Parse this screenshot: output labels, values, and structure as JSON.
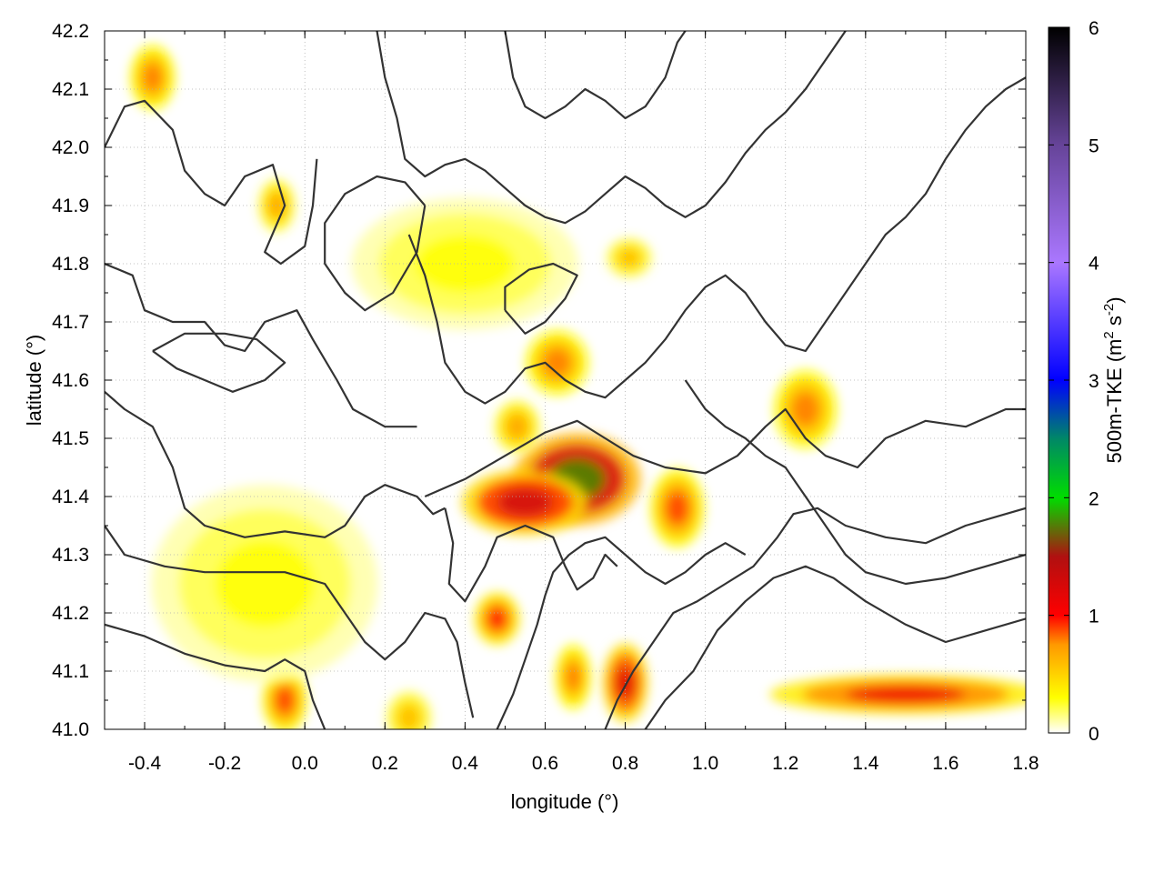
{
  "chart_data": {
    "type": "heatmap",
    "title": "",
    "xlabel": "longitude (°)",
    "ylabel": "latitude (°)",
    "xlim": [
      -0.5,
      1.8
    ],
    "ylim": [
      41.0,
      42.2
    ],
    "x_ticks": [
      -0.4,
      -0.2,
      0.0,
      0.2,
      0.4,
      0.6,
      0.8,
      1.0,
      1.2,
      1.4,
      1.6,
      1.8
    ],
    "x_tick_labels": [
      "-0.4",
      "-0.2",
      "0.0",
      "0.2",
      "0.4",
      "0.6",
      "0.8",
      "1.0",
      "1.2",
      "1.4",
      "1.6",
      "1.8"
    ],
    "y_ticks": [
      41.0,
      41.1,
      41.2,
      41.3,
      41.4,
      41.5,
      41.6,
      41.7,
      41.8,
      41.9,
      42.0,
      42.1,
      42.2
    ],
    "y_tick_labels": [
      "41.0",
      "41.1",
      "41.2",
      "41.3",
      "41.4",
      "41.5",
      "41.6",
      "41.7",
      "41.8",
      "41.9",
      "42.0",
      "42.1",
      "42.2"
    ],
    "grid": true,
    "colorbar": {
      "label": "500m-TKE (m² s⁻²)",
      "label_main": "500m-TKE (m",
      "label_sup1": "2",
      "label_mid": " s",
      "label_sup2": "-2",
      "label_end": ")",
      "range": [
        0,
        6
      ],
      "ticks": [
        0,
        1,
        2,
        3,
        4,
        5,
        6
      ],
      "tick_labels": [
        "0",
        "1",
        "2",
        "3",
        "4",
        "5",
        "6"
      ],
      "stops": [
        {
          "v": 0.0,
          "color": "#ffffff"
        },
        {
          "v": 0.3,
          "color": "#ffff00"
        },
        {
          "v": 0.75,
          "color": "#ff9900"
        },
        {
          "v": 1.0,
          "color": "#ff0000"
        },
        {
          "v": 1.5,
          "color": "#b01010"
        },
        {
          "v": 2.0,
          "color": "#00dd00"
        },
        {
          "v": 2.5,
          "color": "#008866"
        },
        {
          "v": 3.0,
          "color": "#0000ff"
        },
        {
          "v": 4.0,
          "color": "#aa77ff"
        },
        {
          "v": 5.0,
          "color": "#664499"
        },
        {
          "v": 6.0,
          "color": "#000000"
        }
      ]
    },
    "tke_features": [
      {
        "lon": 0.68,
        "lat": 41.43,
        "tke": 1.8,
        "rlon": 0.14,
        "rlat": 0.07
      },
      {
        "lon": 0.55,
        "lat": 41.39,
        "tke": 1.3,
        "rlon": 0.14,
        "rlat": 0.05
      },
      {
        "lon": 0.93,
        "lat": 41.38,
        "tke": 0.9,
        "rlon": 0.06,
        "rlat": 0.06
      },
      {
        "lon": 0.63,
        "lat": 41.63,
        "tke": 0.8,
        "rlon": 0.07,
        "rlat": 0.05
      },
      {
        "lon": 0.53,
        "lat": 41.52,
        "tke": 0.7,
        "rlon": 0.05,
        "rlat": 0.04
      },
      {
        "lon": 0.48,
        "lat": 41.19,
        "tke": 1.0,
        "rlon": 0.05,
        "rlat": 0.04
      },
      {
        "lon": 0.8,
        "lat": 41.08,
        "tke": 1.2,
        "rlon": 0.05,
        "rlat": 0.06
      },
      {
        "lon": 0.67,
        "lat": 41.09,
        "tke": 0.8,
        "rlon": 0.04,
        "rlat": 0.05
      },
      {
        "lon": 1.25,
        "lat": 41.55,
        "tke": 0.8,
        "rlon": 0.07,
        "rlat": 0.06
      },
      {
        "lon": -0.38,
        "lat": 42.12,
        "tke": 0.8,
        "rlon": 0.05,
        "rlat": 0.05
      },
      {
        "lon": -0.07,
        "lat": 41.9,
        "tke": 0.7,
        "rlon": 0.04,
        "rlat": 0.04
      },
      {
        "lon": -0.05,
        "lat": 41.05,
        "tke": 0.9,
        "rlon": 0.05,
        "rlat": 0.05
      },
      {
        "lon": 0.26,
        "lat": 41.02,
        "tke": 0.6,
        "rlon": 0.05,
        "rlat": 0.04
      },
      {
        "lon": 0.81,
        "lat": 41.81,
        "tke": 0.6,
        "rlon": 0.05,
        "rlat": 0.03
      },
      {
        "lon": 0.4,
        "lat": 41.8,
        "tke": 0.3,
        "rlon": 0.25,
        "rlat": 0.1
      },
      {
        "lon": -0.1,
        "lat": 41.25,
        "tke": 0.3,
        "rlon": 0.25,
        "rlat": 0.15
      },
      {
        "lon": 1.5,
        "lat": 41.06,
        "tke": 1.1,
        "rlon": 0.3,
        "rlat": 0.03
      }
    ],
    "contours": [
      [
        [
          -0.5,
          42.0
        ],
        [
          -0.45,
          42.07
        ],
        [
          -0.4,
          42.08
        ],
        [
          -0.33,
          42.03
        ],
        [
          -0.3,
          41.96
        ],
        [
          -0.25,
          41.92
        ],
        [
          -0.2,
          41.9
        ],
        [
          -0.15,
          41.95
        ],
        [
          -0.08,
          41.97
        ],
        [
          -0.05,
          41.9
        ],
        [
          -0.1,
          41.82
        ],
        [
          -0.06,
          41.8
        ],
        [
          0.0,
          41.83
        ],
        [
          0.02,
          41.9
        ],
        [
          0.03,
          41.98
        ]
      ],
      [
        [
          -0.5,
          41.8
        ],
        [
          -0.43,
          41.78
        ],
        [
          -0.4,
          41.72
        ],
        [
          -0.33,
          41.7
        ],
        [
          -0.25,
          41.7
        ],
        [
          -0.2,
          41.66
        ],
        [
          -0.15,
          41.65
        ],
        [
          -0.1,
          41.7
        ],
        [
          -0.02,
          41.72
        ],
        [
          0.02,
          41.67
        ],
        [
          0.08,
          41.6
        ],
        [
          0.12,
          41.55
        ],
        [
          0.2,
          41.52
        ],
        [
          0.28,
          41.52
        ]
      ],
      [
        [
          -0.5,
          41.58
        ],
        [
          -0.45,
          41.55
        ],
        [
          -0.38,
          41.52
        ],
        [
          -0.33,
          41.45
        ],
        [
          -0.3,
          41.38
        ],
        [
          -0.25,
          41.35
        ],
        [
          -0.15,
          41.33
        ],
        [
          -0.05,
          41.34
        ],
        [
          0.05,
          41.33
        ],
        [
          0.1,
          41.35
        ],
        [
          0.15,
          41.4
        ],
        [
          0.2,
          41.42
        ],
        [
          0.28,
          41.4
        ],
        [
          0.32,
          41.37
        ],
        [
          0.35,
          41.38
        ]
      ],
      [
        [
          0.35,
          41.38
        ],
        [
          0.37,
          41.32
        ],
        [
          0.36,
          41.25
        ],
        [
          0.4,
          41.22
        ],
        [
          0.45,
          41.28
        ],
        [
          0.48,
          41.33
        ],
        [
          0.55,
          41.35
        ],
        [
          0.62,
          41.33
        ],
        [
          0.65,
          41.28
        ],
        [
          0.68,
          41.24
        ],
        [
          0.72,
          41.26
        ],
        [
          0.75,
          41.3
        ],
        [
          0.78,
          41.28
        ]
      ],
      [
        [
          -0.5,
          41.35
        ],
        [
          -0.45,
          41.3
        ],
        [
          -0.35,
          41.28
        ],
        [
          -0.25,
          41.27
        ],
        [
          -0.15,
          41.27
        ],
        [
          -0.05,
          41.27
        ],
        [
          0.05,
          41.25
        ],
        [
          0.1,
          41.2
        ],
        [
          0.15,
          41.15
        ],
        [
          0.2,
          41.12
        ],
        [
          0.25,
          41.15
        ],
        [
          0.3,
          41.2
        ],
        [
          0.35,
          41.19
        ],
        [
          0.38,
          41.15
        ],
        [
          0.4,
          41.08
        ],
        [
          0.42,
          41.02
        ]
      ],
      [
        [
          -0.5,
          41.18
        ],
        [
          -0.4,
          41.16
        ],
        [
          -0.3,
          41.13
        ],
        [
          -0.2,
          41.11
        ],
        [
          -0.1,
          41.1
        ],
        [
          -0.05,
          41.12
        ],
        [
          0.0,
          41.1
        ],
        [
          0.02,
          41.05
        ],
        [
          0.05,
          41.0
        ]
      ],
      [
        [
          0.48,
          41.0
        ],
        [
          0.52,
          41.06
        ],
        [
          0.55,
          41.12
        ],
        [
          0.58,
          41.18
        ],
        [
          0.6,
          41.23
        ],
        [
          0.62,
          41.27
        ],
        [
          0.66,
          41.3
        ],
        [
          0.7,
          41.32
        ],
        [
          0.75,
          41.33
        ],
        [
          0.8,
          41.3
        ],
        [
          0.85,
          41.27
        ],
        [
          0.9,
          41.25
        ],
        [
          0.95,
          41.27
        ],
        [
          1.0,
          41.3
        ],
        [
          1.05,
          41.32
        ],
        [
          1.1,
          41.3
        ]
      ],
      [
        [
          0.75,
          41.0
        ],
        [
          0.78,
          41.05
        ],
        [
          0.82,
          41.1
        ],
        [
          0.87,
          41.15
        ],
        [
          0.92,
          41.2
        ],
        [
          0.98,
          41.22
        ],
        [
          1.05,
          41.25
        ],
        [
          1.12,
          41.28
        ],
        [
          1.18,
          41.33
        ],
        [
          1.22,
          41.37
        ],
        [
          1.28,
          41.38
        ],
        [
          1.35,
          41.35
        ],
        [
          1.45,
          41.33
        ],
        [
          1.55,
          41.32
        ],
        [
          1.65,
          41.35
        ],
        [
          1.75,
          41.37
        ],
        [
          1.8,
          41.38
        ]
      ],
      [
        [
          0.85,
          41.0
        ],
        [
          0.9,
          41.05
        ],
        [
          0.97,
          41.1
        ],
        [
          1.03,
          41.17
        ],
        [
          1.1,
          41.22
        ],
        [
          1.17,
          41.26
        ],
        [
          1.25,
          41.28
        ],
        [
          1.32,
          41.26
        ],
        [
          1.4,
          41.22
        ],
        [
          1.5,
          41.18
        ],
        [
          1.6,
          41.15
        ],
        [
          1.7,
          41.17
        ],
        [
          1.8,
          41.19
        ]
      ],
      [
        [
          0.3,
          41.4
        ],
        [
          0.4,
          41.43
        ],
        [
          0.5,
          41.47
        ],
        [
          0.6,
          41.51
        ],
        [
          0.68,
          41.53
        ],
        [
          0.75,
          41.5
        ],
        [
          0.82,
          41.47
        ],
        [
          0.9,
          41.45
        ],
        [
          1.0,
          41.44
        ],
        [
          1.08,
          41.47
        ],
        [
          1.15,
          41.52
        ],
        [
          1.2,
          41.55
        ],
        [
          1.25,
          41.5
        ],
        [
          1.3,
          41.47
        ],
        [
          1.38,
          41.45
        ],
        [
          1.45,
          41.5
        ],
        [
          1.55,
          41.53
        ],
        [
          1.65,
          41.52
        ],
        [
          1.75,
          41.55
        ],
        [
          1.8,
          41.55
        ]
      ],
      [
        [
          0.26,
          41.85
        ],
        [
          0.3,
          41.78
        ],
        [
          0.33,
          41.7
        ],
        [
          0.35,
          41.63
        ],
        [
          0.4,
          41.58
        ],
        [
          0.45,
          41.56
        ],
        [
          0.5,
          41.58
        ],
        [
          0.55,
          41.62
        ],
        [
          0.6,
          41.63
        ],
        [
          0.65,
          41.6
        ],
        [
          0.7,
          41.58
        ],
        [
          0.75,
          41.57
        ],
        [
          0.8,
          41.6
        ],
        [
          0.85,
          41.63
        ],
        [
          0.9,
          41.67
        ],
        [
          0.95,
          41.72
        ],
        [
          1.0,
          41.76
        ],
        [
          1.05,
          41.78
        ],
        [
          1.1,
          41.75
        ],
        [
          1.15,
          41.7
        ],
        [
          1.2,
          41.66
        ],
        [
          1.25,
          41.65
        ],
        [
          1.3,
          41.7
        ],
        [
          1.35,
          41.75
        ],
        [
          1.4,
          41.8
        ],
        [
          1.45,
          41.85
        ],
        [
          1.5,
          41.88
        ],
        [
          1.55,
          41.92
        ],
        [
          1.6,
          41.98
        ],
        [
          1.65,
          42.03
        ],
        [
          1.7,
          42.07
        ],
        [
          1.75,
          42.1
        ],
        [
          1.8,
          42.12
        ]
      ],
      [
        [
          0.18,
          42.2
        ],
        [
          0.2,
          42.12
        ],
        [
          0.23,
          42.05
        ],
        [
          0.25,
          41.98
        ],
        [
          0.3,
          41.95
        ],
        [
          0.35,
          41.97
        ],
        [
          0.4,
          41.98
        ],
        [
          0.45,
          41.96
        ],
        [
          0.5,
          41.93
        ],
        [
          0.55,
          41.9
        ],
        [
          0.6,
          41.88
        ],
        [
          0.65,
          41.87
        ],
        [
          0.7,
          41.89
        ],
        [
          0.75,
          41.92
        ],
        [
          0.8,
          41.95
        ],
        [
          0.85,
          41.93
        ],
        [
          0.9,
          41.9
        ],
        [
          0.95,
          41.88
        ],
        [
          1.0,
          41.9
        ],
        [
          1.05,
          41.94
        ],
        [
          1.1,
          41.99
        ],
        [
          1.15,
          42.03
        ],
        [
          1.2,
          42.06
        ],
        [
          1.25,
          42.1
        ],
        [
          1.3,
          42.15
        ],
        [
          1.35,
          42.2
        ]
      ],
      [
        [
          0.5,
          42.2
        ],
        [
          0.52,
          42.12
        ],
        [
          0.55,
          42.07
        ],
        [
          0.6,
          42.05
        ],
        [
          0.65,
          42.07
        ],
        [
          0.7,
          42.1
        ],
        [
          0.75,
          42.08
        ],
        [
          0.8,
          42.05
        ],
        [
          0.85,
          42.07
        ],
        [
          0.9,
          42.12
        ],
        [
          0.93,
          42.18
        ],
        [
          0.95,
          42.2
        ]
      ],
      [
        [
          0.95,
          41.6
        ],
        [
          1.0,
          41.55
        ],
        [
          1.05,
          41.52
        ],
        [
          1.1,
          41.5
        ],
        [
          1.15,
          41.47
        ],
        [
          1.2,
          41.45
        ],
        [
          1.25,
          41.4
        ],
        [
          1.3,
          41.35
        ],
        [
          1.35,
          41.3
        ],
        [
          1.4,
          41.27
        ],
        [
          1.5,
          41.25
        ],
        [
          1.6,
          41.26
        ],
        [
          1.7,
          41.28
        ],
        [
          1.8,
          41.3
        ]
      ],
      [
        [
          0.3,
          41.9
        ],
        [
          0.28,
          41.82
        ],
        [
          0.22,
          41.75
        ],
        [
          0.15,
          41.72
        ],
        [
          0.1,
          41.75
        ],
        [
          0.05,
          41.8
        ],
        [
          0.05,
          41.87
        ],
        [
          0.1,
          41.92
        ],
        [
          0.18,
          41.95
        ],
        [
          0.25,
          41.94
        ],
        [
          0.3,
          41.9
        ]
      ],
      [
        [
          -0.38,
          41.65
        ],
        [
          -0.32,
          41.62
        ],
        [
          -0.25,
          41.6
        ],
        [
          -0.18,
          41.58
        ],
        [
          -0.1,
          41.6
        ],
        [
          -0.05,
          41.63
        ],
        [
          -0.12,
          41.67
        ],
        [
          -0.2,
          41.68
        ],
        [
          -0.3,
          41.68
        ],
        [
          -0.38,
          41.65
        ]
      ],
      [
        [
          0.5,
          41.72
        ],
        [
          0.55,
          41.68
        ],
        [
          0.6,
          41.7
        ],
        [
          0.65,
          41.74
        ],
        [
          0.68,
          41.78
        ],
        [
          0.62,
          41.8
        ],
        [
          0.56,
          41.79
        ],
        [
          0.5,
          41.76
        ],
        [
          0.5,
          41.72
        ]
      ]
    ]
  }
}
